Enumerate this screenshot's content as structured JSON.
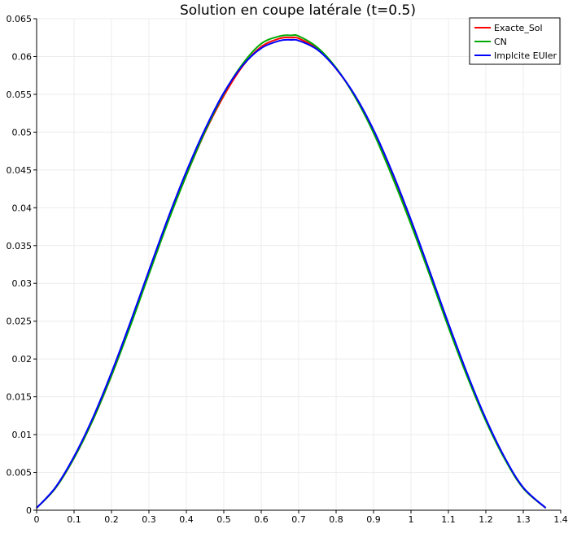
{
  "chart_data": {
    "type": "line",
    "title": "Solution en coupe latérale (t=0.5)",
    "xlabel": "",
    "ylabel": "",
    "xlim": [
      0,
      1.4
    ],
    "ylim": [
      0,
      0.065
    ],
    "grid": true,
    "legend_position": "top-right",
    "x_ticks": [
      "0",
      "0.1",
      "0.2",
      "0.3",
      "0.4",
      "0.5",
      "0.6",
      "0.7",
      "0.8",
      "0.9",
      "1",
      "1.1",
      "1.2",
      "1.3",
      "1.4"
    ],
    "y_ticks": [
      "0",
      "0.005",
      "0.01",
      "0.015",
      "0.02",
      "0.025",
      "0.03",
      "0.035",
      "0.04",
      "0.045",
      "0.05",
      "0.055",
      "0.06",
      "0.065"
    ],
    "x": [
      0,
      0.05,
      0.1,
      0.15,
      0.2,
      0.25,
      0.3,
      0.35,
      0.4,
      0.45,
      0.5,
      0.55,
      0.6,
      0.65,
      0.68,
      0.7,
      0.75,
      0.8,
      0.85,
      0.9,
      0.95,
      1.0,
      1.05,
      1.1,
      1.15,
      1.2,
      1.25,
      1.3,
      1.36
    ],
    "series": [
      {
        "name": "Exacte_Sol",
        "color": "#ff0000",
        "values": [
          0.0003,
          0.0029,
          0.0069,
          0.0119,
          0.0178,
          0.0244,
          0.0313,
          0.0381,
          0.0443,
          0.05,
          0.0548,
          0.0587,
          0.0613,
          0.0624,
          0.0625,
          0.0624,
          0.061,
          0.0584,
          0.0548,
          0.05,
          0.0443,
          0.0381,
          0.0313,
          0.0244,
          0.0178,
          0.0119,
          0.0069,
          0.0029,
          0.0003
        ]
      },
      {
        "name": "CN",
        "color": "#00aa00",
        "values": [
          0.0003,
          0.0029,
          0.0069,
          0.0119,
          0.0178,
          0.0243,
          0.0312,
          0.038,
          0.0443,
          0.0501,
          0.0551,
          0.059,
          0.0617,
          0.0627,
          0.0628,
          0.0627,
          0.0612,
          0.0585,
          0.0547,
          0.0499,
          0.0441,
          0.0378,
          0.0311,
          0.0242,
          0.0177,
          0.0118,
          0.0068,
          0.0029,
          0.0003
        ]
      },
      {
        "name": "Implcite EUler",
        "color": "#0000ff",
        "values": [
          0.0003,
          0.003,
          0.0071,
          0.0122,
          0.0182,
          0.0248,
          0.0317,
          0.0385,
          0.0448,
          0.0504,
          0.0552,
          0.0588,
          0.0611,
          0.0621,
          0.0622,
          0.0621,
          0.0609,
          0.0584,
          0.0549,
          0.0503,
          0.0447,
          0.0384,
          0.0316,
          0.0247,
          0.0181,
          0.0121,
          0.007,
          0.003,
          0.0003
        ]
      }
    ]
  }
}
